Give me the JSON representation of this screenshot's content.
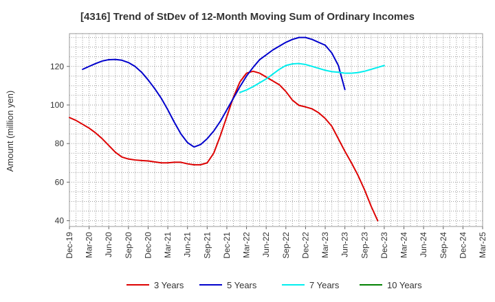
{
  "chart_data": {
    "type": "line",
    "title": "[4316]  Trend of StDev of 12-Month Moving Sum of Ordinary Incomes",
    "ylabel": "Amount (million yen)",
    "xlabel": "",
    "ylim": [
      37,
      137
    ],
    "yticks": [
      40,
      60,
      80,
      100,
      120
    ],
    "x_tick_labels": [
      "Dec-19",
      "Mar-20",
      "Jun-20",
      "Sep-20",
      "Dec-20",
      "Mar-21",
      "Jun-21",
      "Sep-21",
      "Dec-21",
      "Mar-22",
      "Jun-22",
      "Sep-22",
      "Dec-22",
      "Mar-23",
      "Jun-23",
      "Sep-23",
      "Dec-23",
      "Mar-24",
      "Jun-24",
      "Sep-24",
      "Dec-24",
      "Mar-25"
    ],
    "grid": true,
    "legend_position": "bottom",
    "series": [
      {
        "name": "3 Years",
        "color": "#dd0000",
        "start_index": 0,
        "values": [
          93.5,
          92,
          90,
          88,
          85.5,
          82.5,
          79,
          75.5,
          73,
          72,
          71.5,
          71.2,
          71,
          70.5,
          70,
          70,
          70.3,
          70.3,
          69.5,
          69,
          69,
          70,
          75,
          84,
          94,
          104,
          112,
          116.5,
          117.5,
          116.5,
          114.5,
          112.5,
          110.5,
          107,
          102.5,
          99.8,
          99,
          98,
          96,
          93,
          89,
          82.5,
          76,
          70,
          63.5,
          56,
          47.5,
          40
        ]
      },
      {
        "name": "5 Years",
        "color": "#0000cc",
        "start_index": 2,
        "values": [
          118.5,
          120,
          121.5,
          122.8,
          123.5,
          123.6,
          123.2,
          122,
          120,
          117,
          113,
          108.5,
          103.5,
          97.5,
          91,
          85,
          80.5,
          78.2,
          79.5,
          82.5,
          86.5,
          91.5,
          97.5,
          103.5,
          109.5,
          115,
          119.5,
          123.5,
          126,
          128.5,
          130.5,
          132.5,
          134,
          135,
          135,
          134,
          132.5,
          131,
          127,
          120.5,
          108
        ]
      },
      {
        "name": "7 Years",
        "color": "#00eeee",
        "start_index": 26,
        "values": [
          106.5,
          107.8,
          109.5,
          111.5,
          113.5,
          116,
          118.5,
          120.5,
          121.3,
          121.5,
          121,
          120,
          119,
          118,
          117.3,
          117,
          116.5,
          116.5,
          116.8,
          117.5,
          118.5,
          119.5,
          120.5
        ]
      },
      {
        "name": "10 Years",
        "color": "#008000",
        "start_index": 0,
        "values": []
      }
    ]
  }
}
